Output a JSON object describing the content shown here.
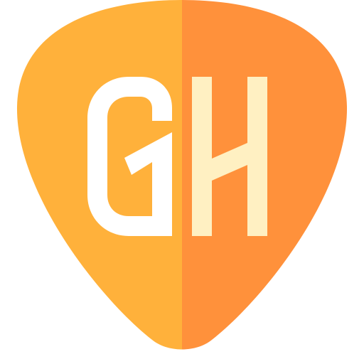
{
  "icon": {
    "name": "guitar-pick-icon",
    "logo_text": "GH",
    "colors": {
      "left_half": "#FFB13B",
      "right_half": "#FF913B",
      "letter_g": "#FFFFFF",
      "letter_h": "#FFF0C2"
    }
  }
}
